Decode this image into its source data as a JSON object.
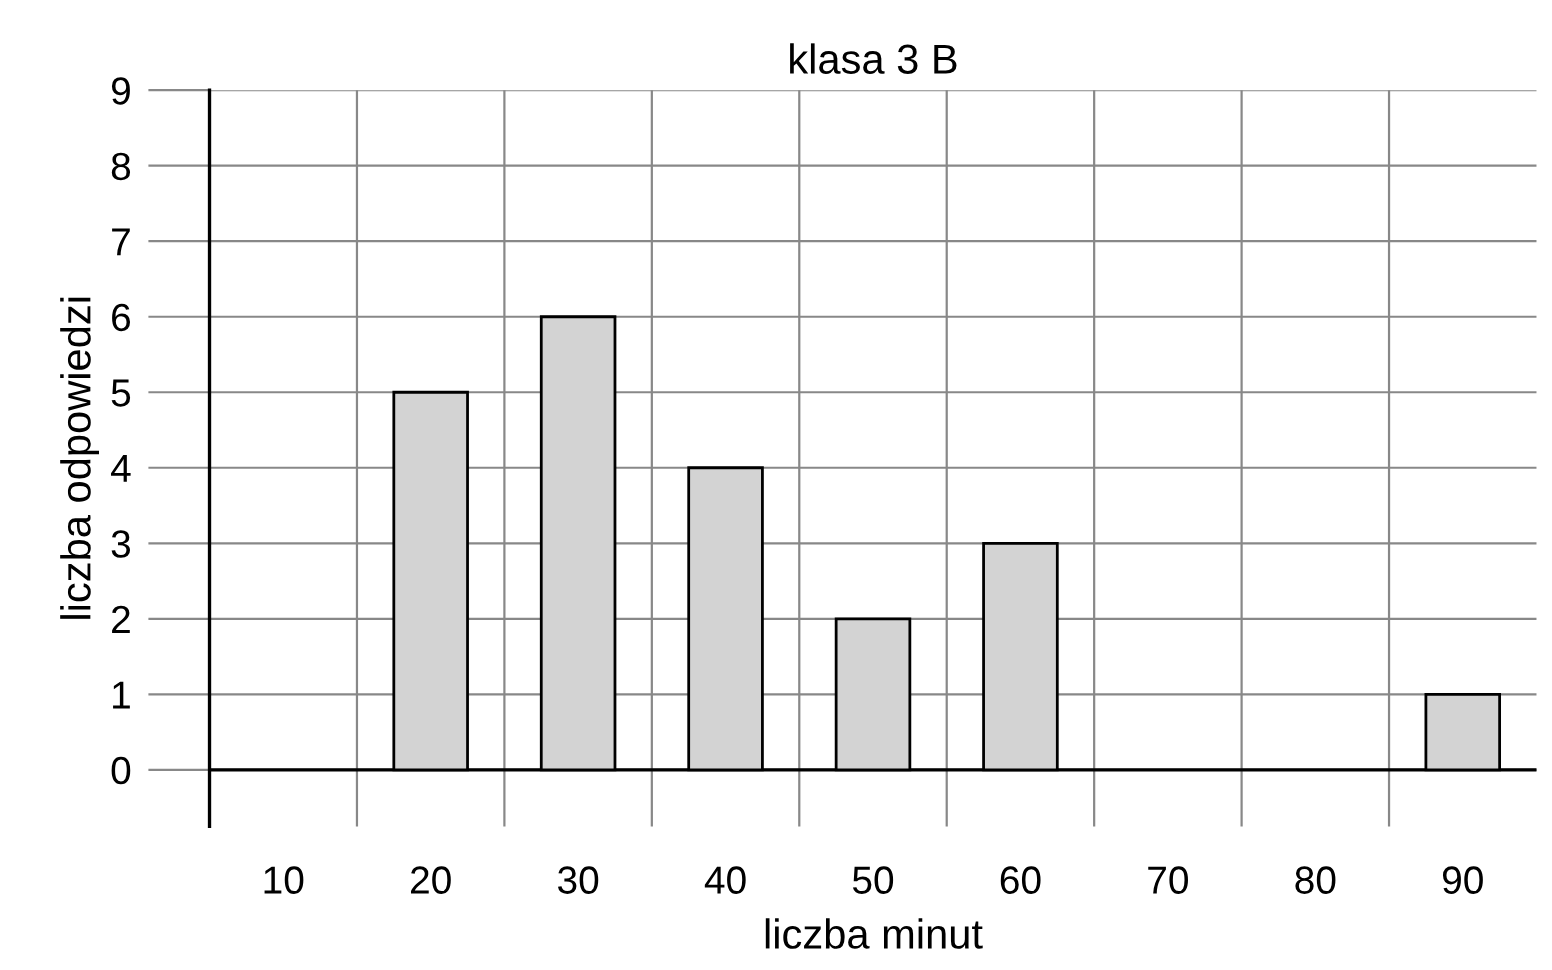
{
  "chart_data": {
    "type": "bar",
    "title": "klasa 3 B",
    "xlabel": "liczba minut",
    "ylabel": "liczba odpowiedzi",
    "categories": [
      "10",
      "20",
      "30",
      "40",
      "50",
      "60",
      "70",
      "80",
      "90"
    ],
    "values": [
      0,
      5,
      6,
      4,
      2,
      3,
      0,
      0,
      1
    ],
    "color": "#d3d3d3",
    "ylim": [
      -0.75,
      9
    ],
    "yticks": [
      0,
      1,
      2,
      3,
      4,
      5,
      6,
      7,
      8,
      9
    ],
    "grid": true
  }
}
